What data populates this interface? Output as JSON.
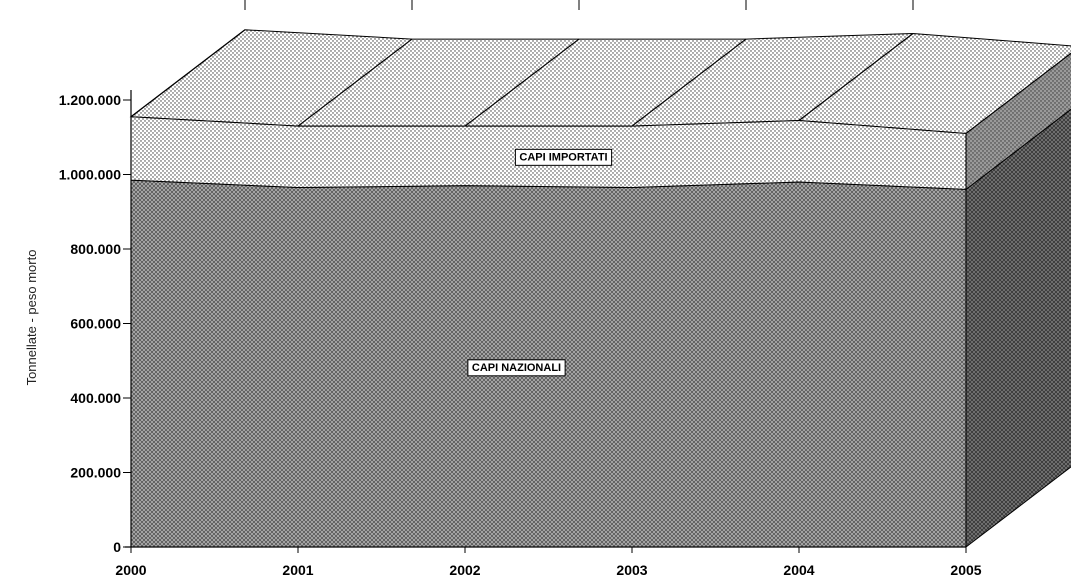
{
  "chart_data": {
    "type": "area",
    "stacked": true,
    "three_d": true,
    "x": [
      "2000",
      "2001",
      "2002",
      "2003",
      "2004",
      "2005"
    ],
    "ylabel": "Tonnellate - peso morto",
    "xlabel": "",
    "ylim": [
      0,
      1200000
    ],
    "y_ticks": [
      "0",
      "200.000",
      "400.000",
      "600.000",
      "800.000",
      "1.000.000",
      "1.200.000"
    ],
    "y_tick_values": [
      0,
      200000,
      400000,
      600000,
      800000,
      1000000,
      1200000
    ],
    "grid": false,
    "series": [
      {
        "name": "CAPI NAZIONALI",
        "values": [
          985000,
          965000,
          970000,
          965000,
          980000,
          960000
        ],
        "color": "#8c8c8c",
        "pattern": "crosshatch"
      },
      {
        "name": "CAPI IMPORTATI",
        "values": [
          170000,
          165000,
          160000,
          165000,
          165000,
          150000
        ],
        "color": "#ffffff",
        "pattern": "dots"
      }
    ]
  }
}
